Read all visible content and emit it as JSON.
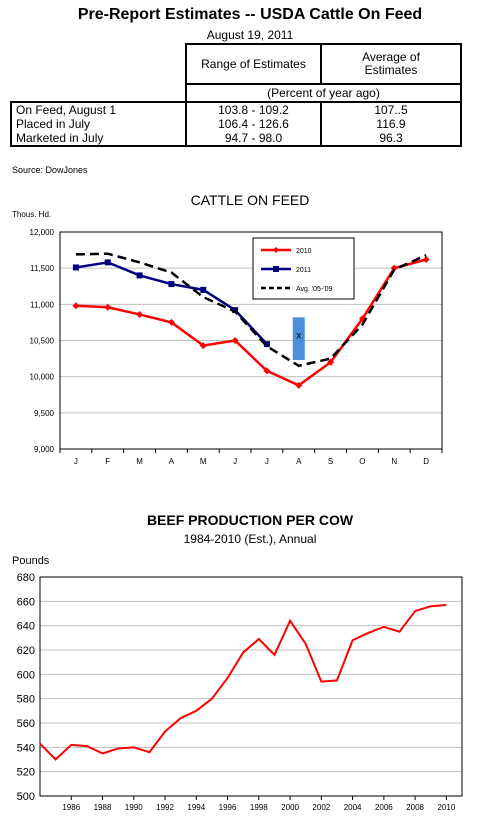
{
  "header": {
    "title": "Pre-Report Estimates -- USDA Cattle On Feed",
    "date": "August 19, 2011",
    "col_range": "Range of Estimates",
    "col_avg_1": "Average of",
    "col_avg_2": "Estimates",
    "unit_row": "(Percent of year ago)",
    "rows": [
      {
        "label": "On Feed, August 1",
        "range": "103.8 - 109.2",
        "avg": "107..5"
      },
      {
        "label": "Placed in July",
        "range": "106.4 - 126.6",
        "avg": "116.9"
      },
      {
        "label": "Marketed in July",
        "range": "94.7 - 98.0",
        "avg": "96.3"
      }
    ],
    "source": "Source: DowJones"
  },
  "chart_data": [
    {
      "type": "line",
      "title": "CATTLE ON FEED",
      "ylabel": "Thous. Hd.",
      "ylim": [
        9000,
        12000
      ],
      "yticks": [
        "9,000",
        "9,500",
        "10,000",
        "10,500",
        "11,000",
        "11,500",
        "12,000"
      ],
      "ytick_values": [
        9000,
        9500,
        10000,
        10500,
        11000,
        11500,
        12000
      ],
      "categories": [
        "J",
        "F",
        "M",
        "A",
        "M",
        "J",
        "J",
        "A",
        "S",
        "O",
        "N",
        "D"
      ],
      "grid": true,
      "legend_position": "top-right",
      "series": [
        {
          "name": "2010",
          "color": "#ff0000",
          "dash": false,
          "marker": "diamond",
          "values": [
            10980,
            10960,
            10860,
            10750,
            10430,
            10500,
            10080,
            9880,
            10200,
            10800,
            11500,
            11620
          ]
        },
        {
          "name": "2011",
          "color": "#000080",
          "dash": false,
          "marker": "square",
          "values": [
            11510,
            11580,
            11400,
            11280,
            11200,
            10920,
            10450,
            null,
            null,
            null,
            null,
            null
          ]
        },
        {
          "name": "Avg. '05-'09",
          "color": "#000000",
          "dash": true,
          "marker": "none",
          "values": [
            11690,
            11700,
            11580,
            11440,
            11100,
            10900,
            10420,
            10150,
            10250,
            10720,
            11480,
            11680
          ]
        }
      ],
      "estimate_range": {
        "category_index": 7,
        "low": 10230,
        "high": 10820,
        "mid": 10580,
        "color": "#4a8fd8",
        "marker": "x"
      }
    },
    {
      "type": "line",
      "title": "BEEF PRODUCTION PER COW",
      "subtitle": "1984-2010 (Est.), Annual",
      "ylabel": "Pounds",
      "ylim": [
        500,
        680
      ],
      "yticks": [
        500,
        520,
        540,
        560,
        580,
        600,
        620,
        640,
        660,
        680
      ],
      "x": [
        1984,
        1985,
        1986,
        1987,
        1988,
        1989,
        1990,
        1991,
        1992,
        1993,
        1994,
        1995,
        1996,
        1997,
        1998,
        1999,
        2000,
        2001,
        2002,
        2003,
        2004,
        2005,
        2006,
        2007,
        2008,
        2009,
        2010
      ],
      "xticks": [
        "1986",
        "1988",
        "1990",
        "1992",
        "1994",
        "1996",
        "1998",
        "2000",
        "2002",
        "2004",
        "2006",
        "2008",
        "2010"
      ],
      "xtick_values": [
        1986,
        1988,
        1990,
        1992,
        1994,
        1996,
        1998,
        2000,
        2002,
        2004,
        2006,
        2008,
        2010
      ],
      "xlim": [
        1984,
        2011
      ],
      "grid": true,
      "series": [
        {
          "name": "",
          "color": "#ff0000",
          "values": [
            543,
            530,
            542,
            541,
            535,
            539,
            540,
            536,
            553,
            564,
            570,
            580,
            597,
            618,
            629,
            616,
            644,
            625,
            594,
            595,
            628,
            634,
            639,
            635,
            652,
            656,
            657
          ]
        }
      ]
    }
  ]
}
